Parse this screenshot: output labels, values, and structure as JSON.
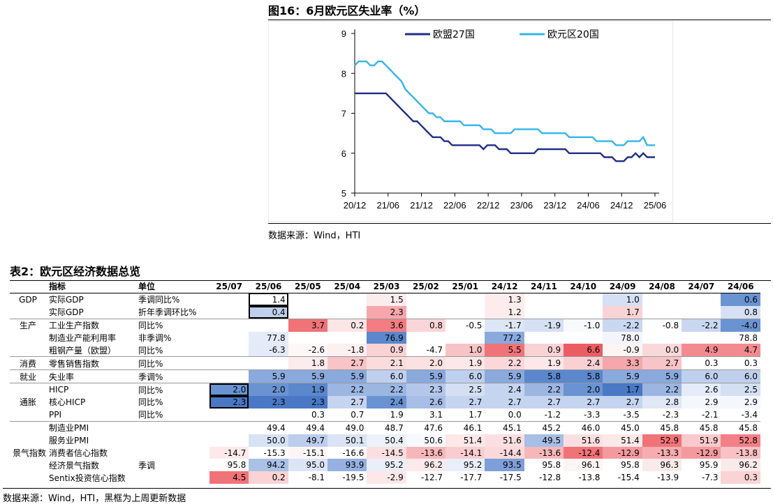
{
  "figure": {
    "title": "图16：6月欧元区失业率（%）",
    "source": "数据来源：Wind，HTI"
  },
  "chart_data": {
    "type": "line",
    "title": "图16：6月欧元区失业率（%）",
    "y_ticks": [
      "5",
      "6",
      "7",
      "8",
      "9"
    ],
    "ylim": [
      5,
      9
    ],
    "x_ticks": [
      "20/12",
      "21/06",
      "21/12",
      "22/06",
      "22/12",
      "23/06",
      "23/12",
      "24/06",
      "24/12",
      "25/06"
    ],
    "legend_position": "top",
    "series": [
      {
        "name": "欧盟27国",
        "color": "#1f2d86",
        "values": [
          7.5,
          7.5,
          7.5,
          7.5,
          7.5,
          7.5,
          7.5,
          7.5,
          7.5,
          7.4,
          7.3,
          7.2,
          7.1,
          7.0,
          6.9,
          6.8,
          6.8,
          6.7,
          6.6,
          6.5,
          6.4,
          6.4,
          6.4,
          6.3,
          6.3,
          6.2,
          6.2,
          6.2,
          6.2,
          6.2,
          6.2,
          6.2,
          6.2,
          6.1,
          6.2,
          6.2,
          6.2,
          6.1,
          6.1,
          6.1,
          6.0,
          6.0,
          6.0,
          6.0,
          6.0,
          6.0,
          6.0,
          6.1,
          6.1,
          6.1,
          6.1,
          6.1,
          6.1,
          6.1,
          6.1,
          6.0,
          6.0,
          6.0,
          6.0,
          6.0,
          6.0,
          6.0,
          6.0,
          6.0,
          5.9,
          5.9,
          5.9,
          5.8,
          5.8,
          5.8,
          5.9,
          5.9,
          6.0,
          5.9,
          6.0,
          5.9,
          5.9,
          5.9
        ]
      },
      {
        "name": "欧元区20国",
        "color": "#33b5e8",
        "values": [
          8.2,
          8.3,
          8.3,
          8.3,
          8.2,
          8.2,
          8.3,
          8.3,
          8.2,
          8.1,
          8.0,
          7.9,
          7.8,
          7.6,
          7.5,
          7.4,
          7.3,
          7.2,
          7.1,
          7.0,
          7.0,
          6.9,
          6.9,
          6.8,
          6.8,
          6.8,
          6.8,
          6.8,
          6.7,
          6.7,
          6.7,
          6.7,
          6.7,
          6.6,
          6.6,
          6.6,
          6.5,
          6.5,
          6.5,
          6.5,
          6.5,
          6.6,
          6.6,
          6.6,
          6.6,
          6.6,
          6.6,
          6.6,
          6.5,
          6.5,
          6.5,
          6.5,
          6.5,
          6.5,
          6.5,
          6.4,
          6.4,
          6.4,
          6.4,
          6.4,
          6.4,
          6.4,
          6.3,
          6.3,
          6.3,
          6.3,
          6.3,
          6.2,
          6.2,
          6.2,
          6.3,
          6.3,
          6.3,
          6.3,
          6.4,
          6.2,
          6.2,
          6.2
        ]
      }
    ]
  },
  "table": {
    "title": "表2：欧元区经济数据总览",
    "source": "数据来源：Wind，HTI，黑框为上周更新数据",
    "headers": {
      "indicator": "指标",
      "unit": "单位"
    },
    "months": [
      "25/07",
      "25/06",
      "25/05",
      "25/04",
      "25/03",
      "25/02",
      "25/01",
      "24/12",
      "24/11",
      "24/10",
      "24/09",
      "24/08",
      "24/07",
      "24/06"
    ],
    "rows": [
      {
        "cat": "GDP",
        "ind": "实际GDP",
        "unit": "季调同比%",
        "vals": [
          "",
          "1.4",
          "",
          "",
          "1.5",
          "",
          "",
          "1.3",
          "",
          "",
          "1.0",
          "",
          "",
          "0.6"
        ],
        "colors": [
          "",
          "#ffffff",
          "",
          "",
          "#fdeced",
          "",
          "",
          "#fdeced",
          "",
          "",
          "#d5e0f4",
          "",
          "",
          "#6a93d2"
        ],
        "boxed": [
          1
        ]
      },
      {
        "cat": "",
        "ind": "实际GDP",
        "unit": "折年季调环比%",
        "vals": [
          "",
          "0.4",
          "",
          "",
          "2.3",
          "",
          "",
          "1.2",
          "",
          "",
          "1.7",
          "",
          "",
          "0.8"
        ],
        "colors": [
          "",
          "#bfd0ee",
          "",
          "",
          "#f5a7ab",
          "",
          "",
          "#fdeced",
          "",
          "",
          "#f9d3d5",
          "",
          "",
          "#d5e0f4"
        ],
        "boxed": [
          1
        ],
        "end": true
      },
      {
        "cat": "生产",
        "ind": "工业生产指数",
        "unit": "同比%",
        "vals": [
          "",
          "",
          "3.7",
          "0.2",
          "3.6",
          "0.8",
          "-0.5",
          "-1.7",
          "-1.9",
          "-1.0",
          "-2.2",
          "-0.8",
          "-2.2",
          "-4.0"
        ],
        "colors": [
          "",
          "",
          "#f07378",
          "#fce5e6",
          "#f27d82",
          "#fad5d7",
          "#ffffff",
          "#dde6f5",
          "#d6e0f4",
          "#f7f9fc",
          "#cad7f0",
          "#ffffff",
          "#cad7f0",
          "#6a93d2"
        ]
      },
      {
        "cat": "",
        "ind": "制造业产能利用率",
        "unit": "非季调%",
        "vals": [
          "",
          "77.8",
          "",
          "",
          "76.9",
          "",
          "",
          "77.2",
          "",
          "",
          "78.0",
          "",
          "",
          "78.8"
        ],
        "colors": [
          "",
          "#e5ebf8",
          "",
          "",
          "#5b87cc",
          "",
          "",
          "#8aa9dd",
          "",
          "",
          "#f2f5fb",
          "",
          "",
          "#ffffff"
        ]
      },
      {
        "cat": "",
        "ind": "粗钢产量（欧盟）",
        "unit": "同比%",
        "vals": [
          "",
          "-6.3",
          "-2.6",
          "-1.8",
          "0.9",
          "-4.7",
          "1.0",
          "5.5",
          "0.9",
          "6.6",
          "-0.9",
          "0.0",
          "4.9",
          "4.7"
        ],
        "colors": [
          "",
          "#e4eaf7",
          "#fef7f7",
          "#fdf0f0",
          "#f9d2d4",
          "#ffffff",
          "#f7c3c6",
          "#f07378",
          "#f9d2d4",
          "#ec5d63",
          "#fdf4f4",
          "#f9d8da",
          "#f28b90",
          "#f28b90"
        ],
        "end": true
      },
      {
        "cat": "消费",
        "ind": "零售销售指数",
        "unit": "同比%",
        "vals": [
          "",
          "",
          "1.8",
          "2.7",
          "2.1",
          "2.0",
          "1.9",
          "2.2",
          "1.9",
          "2.4",
          "3.3",
          "2.7",
          "0.3",
          "0.3"
        ],
        "colors": [
          "",
          "",
          "#fdeced",
          "#f9c4c7",
          "#fbdcdd",
          "#fbe1e2",
          "#fde8e9",
          "#fbd7d9",
          "#fde8e9",
          "#fad0d2",
          "#f5a7ab",
          "#f9c4c7",
          "#ffffff",
          "#ffffff"
        ],
        "end": true
      },
      {
        "cat": "就业",
        "ind": "失业率",
        "unit": "季调%",
        "vals": [
          "",
          "5.9",
          "5.9",
          "5.9",
          "6.0",
          "5.9",
          "6.0",
          "5.9",
          "5.8",
          "5.8",
          "5.9",
          "5.9",
          "6.0",
          "6.0"
        ],
        "colors": [
          "",
          "#8aa9dd",
          "#8aa9dd",
          "#8aa9dd",
          "#bfd0ee",
          "#8aa9dd",
          "#bfd0ee",
          "#8aa9dd",
          "#5b87cc",
          "#5b87cc",
          "#8aa9dd",
          "#8aa9dd",
          "#bfd0ee",
          "#bfd0ee"
        ],
        "end": true
      },
      {
        "cat": "",
        "ind": "HICP",
        "unit": "同比%",
        "vals": [
          "2.0",
          "2.0",
          "1.9",
          "2.2",
          "2.2",
          "2.3",
          "2.5",
          "2.4",
          "2.2",
          "2.0",
          "1.7",
          "2.2",
          "2.6",
          "2.5"
        ],
        "colors": [
          "#6a93d2",
          "#6a93d2",
          "#5b87cc",
          "#9cb6e2",
          "#9cb6e2",
          "#b4c7ea",
          "#d4dff3",
          "#c5d4ef",
          "#9cb6e2",
          "#6a93d2",
          "#4a78c4",
          "#9cb6e2",
          "#e5ebf8",
          "#d4dff3"
        ],
        "boxed": [
          0
        ]
      },
      {
        "cat": "通胀",
        "ind": "核心HICP",
        "unit": "同比%",
        "vals": [
          "2.3",
          "2.3",
          "2.3",
          "2.7",
          "2.4",
          "2.6",
          "2.7",
          "2.7",
          "2.7",
          "2.7",
          "2.7",
          "2.8",
          "2.9",
          "2.9"
        ],
        "colors": [
          "#4a78c4",
          "#4a78c4",
          "#4a78c4",
          "#c5d4ef",
          "#6a93d2",
          "#a7bee6",
          "#c5d4ef",
          "#c5d4ef",
          "#c5d4ef",
          "#c5d4ef",
          "#c5d4ef",
          "#e0e7f6",
          "#f4f7fc",
          "#f4f7fc"
        ],
        "boxed": [
          0
        ]
      },
      {
        "cat": "",
        "ind": "PPI",
        "unit": "同比%",
        "vals": [
          "",
          "",
          "0.3",
          "0.7",
          "1.9",
          "3.1",
          "1.7",
          "0.0",
          "-1.2",
          "-3.3",
          "-3.5",
          "-2.3",
          "-2.1",
          "-3.4"
        ],
        "colors": [
          "",
          "",
          "#ffffff",
          "#ffffff",
          "#ffffff",
          "#ffffff",
          "#ffffff",
          "#ffffff",
          "#ffffff",
          "#ffffff",
          "#ffffff",
          "#ffffff",
          "#ffffff",
          "#ffffff"
        ],
        "end": true
      },
      {
        "cat": "",
        "ind": "制造业PMI",
        "unit": "",
        "vals": [
          "",
          "49.4",
          "49.4",
          "49.0",
          "48.7",
          "47.6",
          "46.1",
          "45.1",
          "45.2",
          "46.0",
          "45.0",
          "45.8",
          "45.8",
          "45.8"
        ],
        "colors": [
          "",
          "#ffffff",
          "#ffffff",
          "#ffffff",
          "#ffffff",
          "#ffffff",
          "#ffffff",
          "#ffffff",
          "#ffffff",
          "#ffffff",
          "#ffffff",
          "#ffffff",
          "#ffffff",
          "#ffffff"
        ]
      },
      {
        "cat": "",
        "ind": "服务业PMI",
        "unit": "",
        "vals": [
          "",
          "50.0",
          "49.7",
          "50.1",
          "50.4",
          "50.6",
          "51.4",
          "51.6",
          "49.5",
          "51.6",
          "51.4",
          "52.9",
          "51.9",
          "52.8"
        ],
        "colors": [
          "",
          "#d8e2f5",
          "#bccdee",
          "#dbe4f5",
          "#ecf1fa",
          "#f7f9fc",
          "#fce8e9",
          "#fbdfe0",
          "#a7bee6",
          "#fbdfe0",
          "#fce8e9",
          "#f07378",
          "#f9c9cc",
          "#f28086"
        ]
      },
      {
        "cat": "景气指数",
        "ind": "消费者信心指数",
        "unit": "",
        "vals": [
          "-14.7",
          "-15.3",
          "-15.1",
          "-16.6",
          "-14.5",
          "-13.6",
          "-14.1",
          "-14.4",
          "-13.6",
          "-12.4",
          "-12.9",
          "-13.3",
          "-12.9",
          "-13.8"
        ],
        "colors": [
          "#fde9ea",
          "#ffffff",
          "#fef6f6",
          "#ffffff",
          "#fbdfe0",
          "#f7b7ba",
          "#f9cdd0",
          "#fbd9db",
          "#f7b7ba",
          "#f07378",
          "#f49a9f",
          "#f6acb0",
          "#f49a9f",
          "#f8c1c4"
        ]
      },
      {
        "cat": "",
        "ind": "经济景气指数",
        "unit": "季调",
        "vals": [
          "95.8",
          "94.2",
          "95.0",
          "93.9",
          "95.2",
          "96.2",
          "95.2",
          "93.5",
          "95.8",
          "96.1",
          "95.8",
          "96.3",
          "95.9",
          "96.2"
        ],
        "colors": [
          "#ffffff",
          "#aac1e7",
          "#dce5f6",
          "#96b1e1",
          "#e9eef9",
          "#fbeaea",
          "#e9eef9",
          "#7f9fd9",
          "#ffffff",
          "#fdf5f5",
          "#ffffff",
          "#fbeaea",
          "#ffffff",
          "#fbeaea"
        ]
      },
      {
        "cat": "",
        "ind": "Sentix投资信心指数",
        "unit": "",
        "vals": [
          "4.5",
          "0.2",
          "-8.1",
          "-19.5",
          "-2.9",
          "-12.7",
          "-17.7",
          "-17.5",
          "-12.8",
          "-13.8",
          "-15.4",
          "-13.9",
          "-7.3",
          "0.3"
        ],
        "colors": [
          "#f07378",
          "#fad3d5",
          "#ffffff",
          "#ffffff",
          "#fde8e9",
          "#ffffff",
          "#ffffff",
          "#ffffff",
          "#ffffff",
          "#ffffff",
          "#ffffff",
          "#ffffff",
          "#ffffff",
          "#fad3d5"
        ]
      }
    ]
  }
}
